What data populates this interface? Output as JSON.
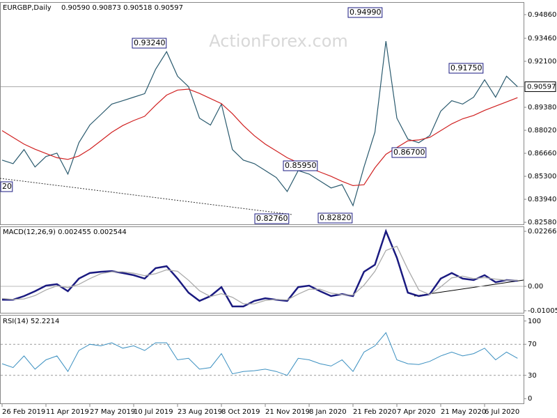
{
  "chart_data": [
    {
      "type": "line",
      "title": "EURGBP,Daily",
      "quote": "0.90590 0.90873 0.90518 0.90597",
      "watermark": "ActionForex.com",
      "ylim": [
        0.8246,
        0.9556
      ],
      "yticks": [
        {
          "value": 0.9486,
          "label": "0.94860"
        },
        {
          "value": 0.9346,
          "label": "0.93460"
        },
        {
          "value": 0.921,
          "label": "0.92100"
        },
        {
          "value": 0.8938,
          "label": "0.89380"
        },
        {
          "value": 0.8802,
          "label": "0.88020"
        },
        {
          "value": 0.8666,
          "label": "0.86660"
        },
        {
          "value": 0.853,
          "label": "0.85300"
        },
        {
          "value": 0.8394,
          "label": "0.83940"
        },
        {
          "value": 0.8258,
          "label": "0.82580"
        }
      ],
      "last_value": 0.90597,
      "annotations": [
        "0.93240",
        "0.94990",
        "0.91750",
        "0.85950",
        "0.86700",
        "0.82760",
        "0.82820",
        "20"
      ],
      "series": [
        {
          "color": "#2a5a6e",
          "values": [
            0.8626,
            0.8605,
            0.8688,
            0.8585,
            0.8647,
            0.8667,
            0.8543,
            0.8729,
            0.8833,
            0.8895,
            0.8957,
            0.8977,
            0.8998,
            0.9019,
            0.9163,
            0.9267,
            0.9122,
            0.906,
            0.8874,
            0.8833,
            0.8957,
            0.8688,
            0.8626,
            0.8605,
            0.8564,
            0.8523,
            0.844,
            0.8564,
            0.8543,
            0.8502,
            0.8461,
            0.8481,
            0.8357,
            0.8585,
            0.8791,
            0.9329,
            0.8874,
            0.875,
            0.8729,
            0.8771,
            0.8915,
            0.8977,
            0.8957,
            0.8998,
            0.9101,
            0.8998,
            0.9122,
            0.906
          ]
        },
        {
          "color": "#d02020",
          "values": [
            0.88,
            0.876,
            0.872,
            0.869,
            0.8665,
            0.864,
            0.863,
            0.865,
            0.869,
            0.874,
            0.879,
            0.883,
            0.886,
            0.8885,
            0.895,
            0.901,
            0.904,
            0.9045,
            0.902,
            0.899,
            0.896,
            0.89,
            0.883,
            0.877,
            0.872,
            0.868,
            0.864,
            0.861,
            0.858,
            0.8555,
            0.853,
            0.85,
            0.8475,
            0.848,
            0.858,
            0.866,
            0.87,
            0.874,
            0.8745,
            0.876,
            0.88,
            0.884,
            0.887,
            0.889,
            0.892,
            0.8945,
            0.897,
            0.8995
          ]
        }
      ]
    },
    {
      "type": "line",
      "title": "MACD(12,26,9) 0.002455 0.002544",
      "ylim": [
        -0.0109,
        0.0244
      ],
      "yticks": [
        0.022662,
        {
          "value": 0,
          "label": "0.00"
        },
        -0.010052
      ],
      "series": [
        {
          "color": "#1a1a80",
          "values": [
            -0.0055,
            -0.0055,
            -0.004,
            -0.002,
            0.0003,
            0.0009,
            -0.002,
            0.0032,
            0.0055,
            0.006,
            0.0063,
            0.0055,
            0.0046,
            0.0032,
            0.0075,
            0.0083,
            0.0032,
            -0.0026,
            -0.006,
            -0.004,
            -0.0003,
            -0.0083,
            -0.0083,
            -0.006,
            -0.0049,
            -0.0055,
            -0.006,
            -0.0003,
            0.0003,
            -0.002,
            -0.004,
            -0.0032,
            -0.004,
            0.006,
            0.0089,
            0.0227,
            0.0118,
            -0.0026,
            -0.004,
            -0.0032,
            0.0032,
            0.0055,
            0.0032,
            0.0026,
            0.0046,
            0.0017,
            0.0026,
            0.0023
          ]
        },
        {
          "color": "#aaaaaa",
          "values": [
            -0.005,
            -0.0054,
            -0.0052,
            -0.0038,
            -0.0015,
            0.0002,
            -0.0005,
            0.0008,
            0.0032,
            0.0052,
            0.006,
            0.006,
            0.0054,
            0.0044,
            0.0052,
            0.0068,
            0.0062,
            0.0025,
            -0.0018,
            -0.0042,
            -0.003,
            -0.0045,
            -0.0072,
            -0.0072,
            -0.0058,
            -0.0054,
            -0.0056,
            -0.0032,
            -0.0012,
            -0.0012,
            -0.0028,
            -0.0034,
            -0.0036,
            0.0005,
            0.0062,
            0.0148,
            0.0165,
            0.007,
            -0.0015,
            -0.0034,
            -0.0002,
            0.0035,
            0.0042,
            0.0032,
            0.0036,
            0.003,
            0.0025,
            0.0025
          ]
        }
      ]
    },
    {
      "type": "line",
      "title": "RSI(14) 52.2214",
      "ylim": [
        -7,
        107
      ],
      "yticks": [
        0,
        30,
        70,
        100
      ],
      "levels": [
        30,
        70
      ],
      "categories": [
        "26 Feb 2019",
        null,
        null,
        null,
        "11 Apr 2019",
        null,
        null,
        null,
        "27 May 2019",
        null,
        null,
        null,
        "10 Jul 2019",
        null,
        null,
        null,
        "23 Aug 2019",
        null,
        null,
        null,
        "8 Oct 2019",
        null,
        null,
        null,
        "21 Nov 2019",
        null,
        null,
        null,
        "8 Jan 2020",
        null,
        null,
        null,
        "21 Feb 2020",
        null,
        null,
        null,
        "7 Apr 2020",
        null,
        null,
        null,
        "21 May 2020",
        null,
        null,
        null,
        "6 Jul 2020",
        null,
        null,
        null
      ],
      "series": [
        {
          "color": "#3a8fc0",
          "values": [
            45,
            40,
            55,
            38,
            50,
            55,
            35,
            62,
            70,
            68,
            72,
            65,
            68,
            62,
            72,
            72,
            50,
            52,
            38,
            40,
            58,
            32,
            35,
            36,
            38,
            35,
            30,
            52,
            50,
            45,
            42,
            50,
            35,
            60,
            68,
            85,
            50,
            45,
            44,
            48,
            55,
            60,
            55,
            58,
            65,
            50,
            60,
            52
          ]
        }
      ]
    }
  ]
}
